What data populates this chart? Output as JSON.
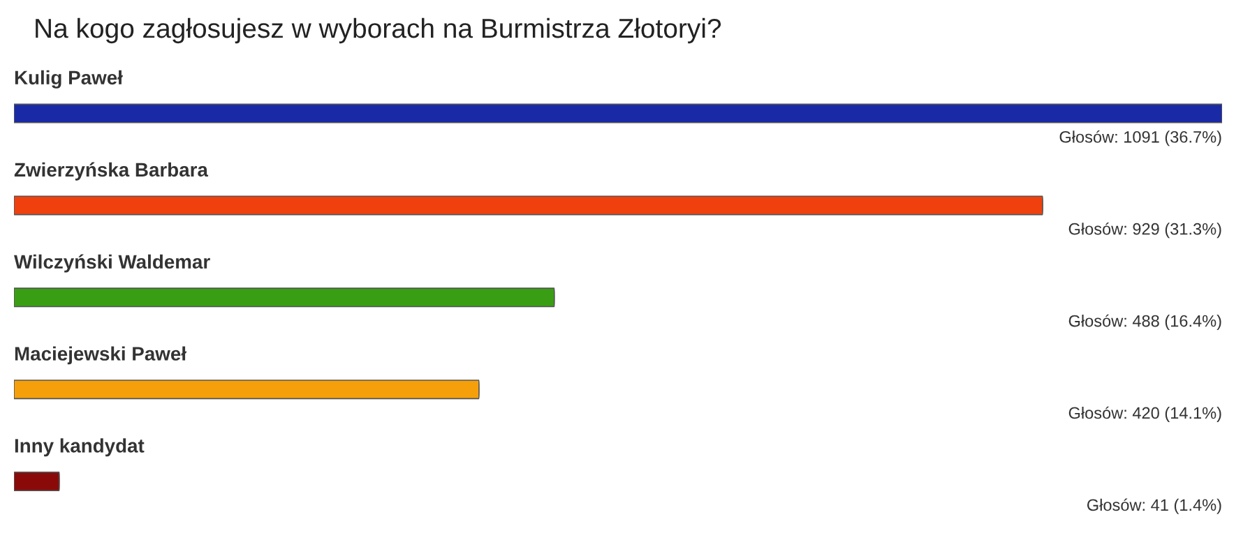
{
  "chart_data": {
    "type": "bar",
    "orientation": "horizontal",
    "title": "Na kogo zagłosujesz w wyborach na Burmistrza Złotoryi?",
    "categories": [
      "Kulig Paweł",
      "Zwierzyńska Barbara",
      "Wilczyński Waldemar",
      "Maciejewski Paweł",
      "Inny kandydat"
    ],
    "values": [
      1091,
      929,
      488,
      420,
      41
    ],
    "colors": [
      "#1a2aa6",
      "#f0400e",
      "#3a9e14",
      "#f5a00a",
      "#8a0a0a"
    ],
    "value_labels": [
      "Głosów: 1091 (36.7%)",
      "Głosów: 929 (31.3%)",
      "Głosów: 488 (16.4%)",
      "Głosów: 420 (14.1%)",
      "Głosów: 41 (1.4%)"
    ]
  }
}
